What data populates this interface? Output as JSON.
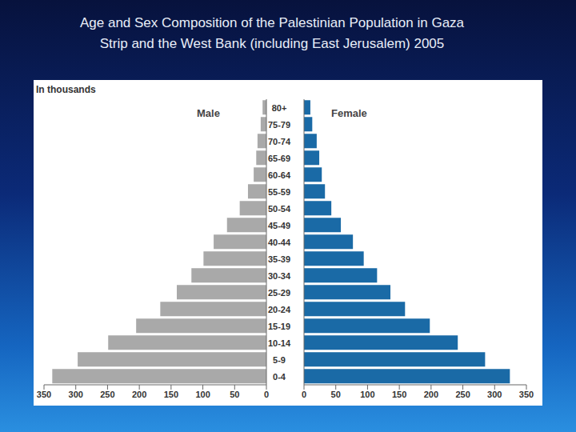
{
  "chart_data": {
    "type": "bar",
    "orientation": "horizontal",
    "title": "Age and Sex Composition of the Palestinian Population in Gaza\nStrip and the West Bank (including East Jerusalem) 2005",
    "annotations": [
      "In thousands"
    ],
    "categories": [
      "0-4",
      "5-9",
      "10-14",
      "15-19",
      "20-24",
      "25-29",
      "30-34",
      "35-39",
      "40-44",
      "45-49",
      "50-54",
      "55-59",
      "60-64",
      "65-69",
      "70-74",
      "75-79",
      "80+"
    ],
    "series": [
      {
        "name": "Male",
        "color": "#a9a9a9",
        "values": [
          337,
          297,
          249,
          205,
          167,
          141,
          118,
          99,
          83,
          62,
          42,
          29,
          20,
          16,
          14,
          9,
          6
        ]
      },
      {
        "name": "Female",
        "color": "#1a6aa6",
        "values": [
          324,
          285,
          242,
          198,
          159,
          136,
          115,
          94,
          77,
          58,
          43,
          33,
          28,
          24,
          20,
          13,
          10
        ]
      }
    ],
    "xlim": [
      0,
      350
    ],
    "xticks": [
      0,
      50,
      100,
      150,
      200,
      250,
      300,
      350
    ],
    "grid": false
  }
}
